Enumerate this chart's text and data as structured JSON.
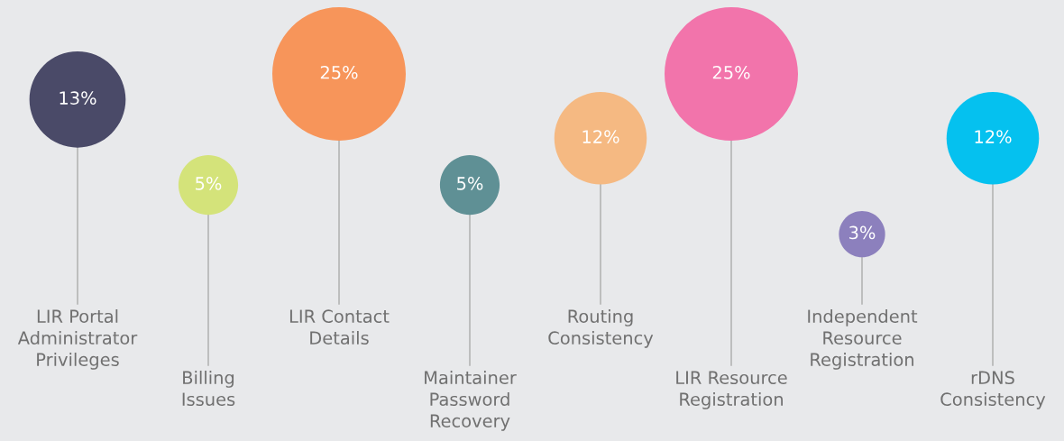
{
  "chart_data": {
    "type": "other",
    "categories": [
      "LIR Portal\nAdministrator\nPrivileges",
      "Billing\nIssues",
      "LIR Contact\nDetails",
      "Maintainer\nPassword\nRecovery",
      "Routing\nConsistency",
      "LIR Resource\nRegistration",
      "Independent\nResource\nRegistration",
      "rDNS\nConsistency"
    ],
    "values": [
      13,
      5,
      25,
      5,
      12,
      25,
      3,
      12
    ],
    "value_labels": [
      "13%",
      "5%",
      "25%",
      "5%",
      "12%",
      "25%",
      "3%",
      "12%"
    ],
    "colors": [
      "#4a4a68",
      "#d4e37a",
      "#f7955a",
      "#5f9095",
      "#f5b982",
      "#f274ab",
      "#8c80bd",
      "#05c1ef"
    ]
  }
}
